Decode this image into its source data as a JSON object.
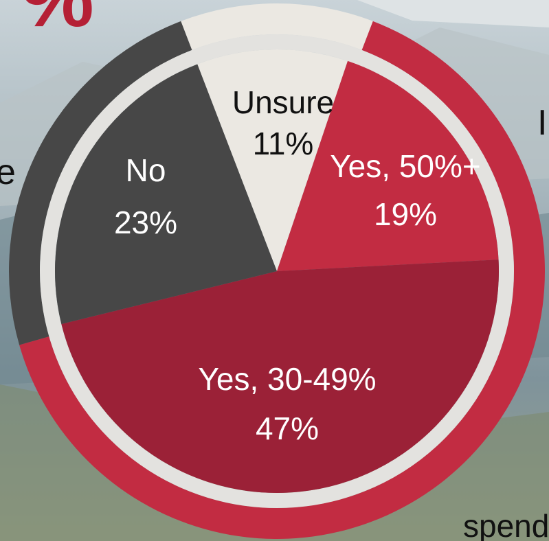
{
  "background": {
    "fragments": {
      "top_left": "%",
      "left": "e",
      "right": "I",
      "bottom_right": "spend"
    }
  },
  "colors": {
    "no": "#474747",
    "unsure": "#ebe8e2",
    "yes_50_plus": "#c22c42",
    "yes_30_49": "#9b2137",
    "ring_gray": "#474747",
    "ring_light": "#ebe8e2",
    "ring_red": "#c22c42"
  },
  "chart_data": {
    "type": "pie",
    "slices": [
      {
        "label": "Unsure",
        "percent_label": "11%",
        "value": 11,
        "color": "#ebe8e2",
        "text_color": "#111111"
      },
      {
        "label": "Yes, 50%+",
        "percent_label": "19%",
        "value": 19,
        "color": "#c22c42",
        "text_color": "#ffffff"
      },
      {
        "label": "Yes, 30-49%",
        "percent_label": "47%",
        "value": 47,
        "color": "#9b2137",
        "text_color": "#ffffff"
      },
      {
        "label": "No",
        "percent_label": "23%",
        "value": 23,
        "color": "#474747",
        "text_color": "#ffffff"
      }
    ]
  }
}
